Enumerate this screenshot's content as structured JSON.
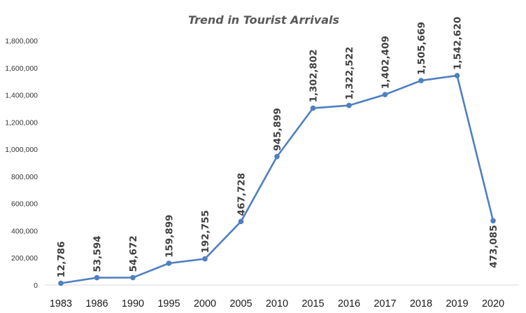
{
  "chart_data": {
    "type": "line",
    "title": "Trend in Tourist Arrivals",
    "xlabel": "",
    "ylabel": "",
    "ylim": [
      0,
      1800000
    ],
    "y_ticks": [
      0,
      200000,
      400000,
      600000,
      800000,
      1000000,
      1200000,
      1400000,
      1600000,
      1800000
    ],
    "y_tick_labels": [
      "0",
      "200,000",
      "400,000",
      "600,000",
      "800,000",
      "1,000,000",
      "1,200,000",
      "1,400,000",
      "1,600,000",
      "1,800,000"
    ],
    "categories": [
      "1983",
      "1986",
      "1990",
      "1995",
      "2000",
      "2005",
      "2010",
      "2015",
      "2016",
      "2017",
      "2018",
      "2019",
      "2020"
    ],
    "values": [
      12786,
      53594,
      54672,
      159899,
      192755,
      467728,
      945899,
      1302802,
      1322522,
      1402409,
      1505669,
      1542620,
      473085
    ],
    "data_labels": [
      "12,786",
      "53,594",
      "54,672",
      "159,899",
      "192,755",
      "467,728",
      "945,899",
      "1,302,802",
      "1,322,522",
      "1,402,409",
      "1,505,669",
      "1,542,620",
      "473,085"
    ],
    "grid": false,
    "legend": "none",
    "series_color": "#4f7fbf"
  }
}
